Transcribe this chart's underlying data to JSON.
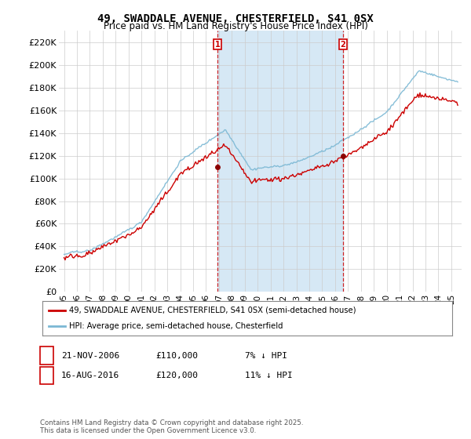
{
  "title1": "49, SWADDALE AVENUE, CHESTERFIELD, S41 0SX",
  "title2": "Price paid vs. HM Land Registry's House Price Index (HPI)",
  "ylim": [
    0,
    230000
  ],
  "yticks": [
    0,
    20000,
    40000,
    60000,
    80000,
    100000,
    120000,
    140000,
    160000,
    180000,
    200000,
    220000
  ],
  "ytick_labels": [
    "£0",
    "£20K",
    "£40K",
    "£60K",
    "£80K",
    "£100K",
    "£120K",
    "£140K",
    "£160K",
    "£180K",
    "£200K",
    "£220K"
  ],
  "hpi_color": "#7bb8d4",
  "price_color": "#cc0000",
  "shade_color": "#d6e8f5",
  "marker1_date": 2006.89,
  "marker1_price": 110000,
  "marker1_label": "1",
  "marker1_text": "21-NOV-2006",
  "marker1_val": "£110,000",
  "marker1_pct": "7% ↓ HPI",
  "marker2_date": 2016.62,
  "marker2_price": 120000,
  "marker2_label": "2",
  "marker2_text": "16-AUG-2016",
  "marker2_val": "£120,000",
  "marker2_pct": "11% ↓ HPI",
  "legend_line1": "49, SWADDALE AVENUE, CHESTERFIELD, S41 0SX (semi-detached house)",
  "legend_line2": "HPI: Average price, semi-detached house, Chesterfield",
  "footnote": "Contains HM Land Registry data © Crown copyright and database right 2025.\nThis data is licensed under the Open Government Licence v3.0.",
  "background_color": "#ffffff",
  "grid_color": "#cccccc",
  "xlim_left": 1994.6,
  "xlim_right": 2025.8
}
